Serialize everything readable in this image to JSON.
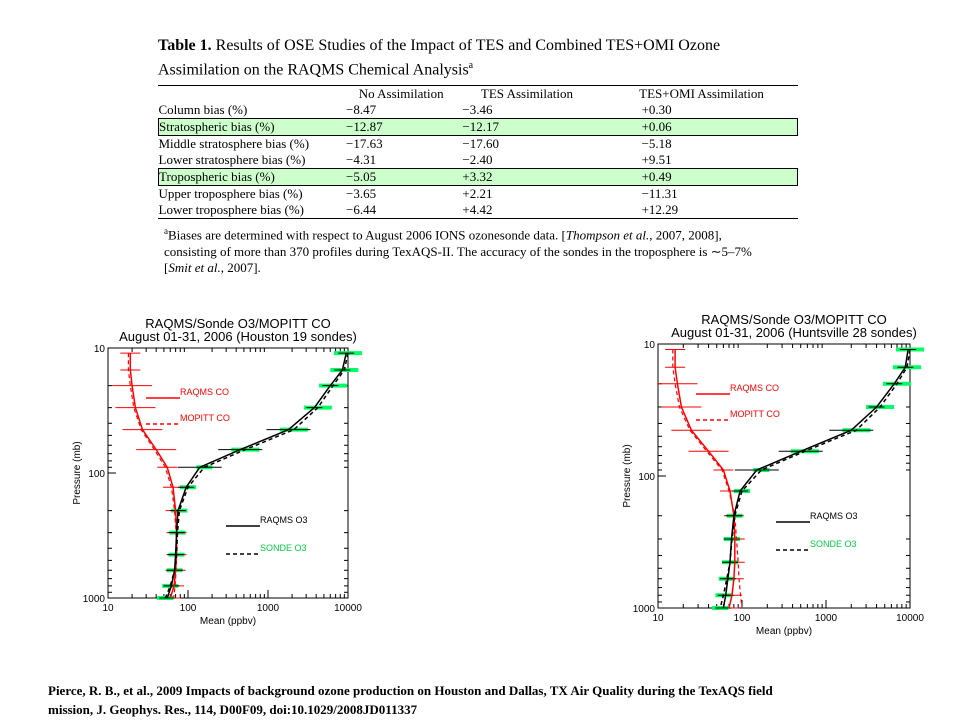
{
  "table": {
    "label": "Table 1.",
    "caption_line1": "Results of OSE Studies of the Impact of TES and Combined TES+OMI Ozone",
    "caption_line2": "Assimilation on the RAQMS Chemical Analysis",
    "caption_sup": "a",
    "headers": [
      "",
      "No Assimilation",
      "TES Assimilation",
      "TES+OMI Assimilation"
    ],
    "rows": [
      {
        "label": "Column bias (%)",
        "values": [
          "−8.47",
          "−3.46",
          "+0.30"
        ],
        "highlight": false
      },
      {
        "label": "Stratospheric bias (%)",
        "values": [
          "−12.87",
          "−12.17",
          "+0.06"
        ],
        "highlight": true
      },
      {
        "label": "Middle stratosphere bias (%)",
        "values": [
          "−17.63",
          "−17.60",
          "−5.18"
        ],
        "highlight": false
      },
      {
        "label": "Lower stratosphere bias (%)",
        "values": [
          "−4.31",
          "−2.40",
          "+9.51"
        ],
        "highlight": false
      },
      {
        "label": "Tropospheric bias (%)",
        "values": [
          "−5.05",
          "+3.32",
          "+0.49"
        ],
        "highlight": true
      },
      {
        "label": "Upper troposphere bias (%)",
        "values": [
          "−3.65",
          "+2.21",
          "−11.31"
        ],
        "highlight": false
      },
      {
        "label": "Lower troposphere bias (%)",
        "values": [
          "−6.44",
          "+4.42",
          "+12.29"
        ],
        "highlight": false
      }
    ],
    "footnote_sup": "a",
    "footnote_a": "Biases are determined with respect to August 2006 IONS ozonesonde data. [",
    "footnote_b": "Thompson et al.",
    "footnote_c": ", 2007, 2008],",
    "footnote_d": "consisting of more than 370 profiles during TexAQS-II. The accuracy of the sondes in the troposphere is ∼5–7%",
    "footnote_e": "[",
    "footnote_f": "Smit et al.",
    "footnote_g": ", 2007]."
  },
  "chart_data": [
    {
      "type": "line",
      "title": "RAQMS/Sonde O3/MOPITT CO",
      "subtitle": "August 01-31, 2006 (Houston 19 sondes)",
      "xlabel": "Mean (ppbv)",
      "ylabel": "Pressure (mb)",
      "x_scale": "log",
      "y_scale": "log",
      "xlim": [
        10,
        10000
      ],
      "ylim": [
        1000,
        10
      ],
      "xticks": [
        "10",
        "100",
        "1000",
        "10000"
      ],
      "yticks": [
        "10",
        "100",
        "1000"
      ],
      "legend": [
        "RAQMS CO",
        "MOPITT CO",
        "RAQMS O3",
        "SONDE O3"
      ],
      "colors": {
        "raqms_co": "#ff0000",
        "mopitt_co": "#ff0000",
        "raqms_o3": "#000000",
        "sonde_o3": "#00ff66"
      },
      "series": [
        {
          "name": "RAQMS CO",
          "x": [
            19,
            19,
            20,
            22,
            27,
            40,
            55,
            65,
            70,
            72,
            72,
            70,
            67,
            60
          ],
          "y": [
            11,
            15,
            20,
            30,
            45,
            65,
            90,
            130,
            200,
            300,
            450,
            600,
            800,
            1000
          ]
        },
        {
          "name": "MOPITT CO",
          "x": [
            18,
            18,
            19,
            21,
            26,
            38,
            52,
            62,
            68,
            71,
            72,
            71,
            69,
            66
          ],
          "y": [
            11,
            15,
            20,
            30,
            45,
            65,
            90,
            130,
            200,
            300,
            450,
            600,
            800,
            1000
          ]
        },
        {
          "name": "RAQMS O3",
          "x": [
            9500,
            8500,
            6000,
            3800,
            1800,
            450,
            140,
            95,
            75,
            72,
            70,
            68,
            62,
            55
          ],
          "y": [
            11,
            15,
            20,
            30,
            45,
            65,
            90,
            130,
            200,
            300,
            450,
            600,
            800,
            1000
          ]
        },
        {
          "name": "SONDE O3",
          "x": [
            10000,
            9000,
            6500,
            4200,
            2100,
            520,
            160,
            100,
            78,
            74,
            72,
            68,
            60,
            52
          ],
          "y": [
            11,
            15,
            20,
            30,
            45,
            65,
            90,
            130,
            200,
            300,
            450,
            600,
            800,
            1000
          ]
        }
      ]
    },
    {
      "type": "line",
      "title": "RAQMS/Sonde O3/MOPITT CO",
      "subtitle": "August 01-31, 2006 (Huntsville 28 sondes)",
      "xlabel": "Mean (ppbv)",
      "ylabel": "Pressure (mb)",
      "x_scale": "log",
      "y_scale": "log",
      "xlim": [
        10,
        10000
      ],
      "ylim": [
        1000,
        10
      ],
      "xticks": [
        "10",
        "100",
        "1000",
        "10000"
      ],
      "yticks": [
        "10",
        "100",
        "1000"
      ],
      "legend": [
        "RAQMS CO",
        "MOPITT CO",
        "RAQMS O3",
        "SONDE O3"
      ],
      "colors": {
        "raqms_co": "#ff0000",
        "mopitt_co": "#ff0000",
        "raqms_o3": "#000000",
        "sonde_o3": "#00ff66"
      },
      "series": [
        {
          "name": "RAQMS CO",
          "x": [
            16,
            16,
            17,
            19,
            25,
            40,
            60,
            72,
            80,
            82,
            82,
            80,
            76,
            70
          ],
          "y": [
            11,
            15,
            20,
            30,
            45,
            65,
            90,
            130,
            200,
            300,
            450,
            600,
            800,
            1000
          ]
        },
        {
          "name": "MOPITT CO",
          "x": [
            15,
            15,
            16,
            18,
            24,
            38,
            58,
            70,
            82,
            86,
            90,
            92,
            96,
            100
          ],
          "y": [
            11,
            15,
            20,
            30,
            45,
            65,
            90,
            130,
            200,
            300,
            450,
            600,
            800,
            1000
          ]
        },
        {
          "name": "RAQMS O3",
          "x": [
            9500,
            8800,
            6500,
            4000,
            2000,
            500,
            150,
            95,
            80,
            75,
            72,
            68,
            64,
            60
          ],
          "y": [
            11,
            15,
            20,
            30,
            45,
            65,
            90,
            130,
            200,
            300,
            450,
            600,
            800,
            1000
          ]
        },
        {
          "name": "SONDE O3",
          "x": [
            10000,
            9200,
            7000,
            4400,
            2300,
            560,
            170,
            100,
            82,
            76,
            72,
            66,
            60,
            55
          ],
          "y": [
            11,
            15,
            20,
            30,
            45,
            65,
            90,
            130,
            200,
            300,
            450,
            600,
            800,
            1000
          ]
        }
      ]
    }
  ],
  "citation_line1": "Pierce, R. B., et al., 2009 Impacts of background ozone production on Houston and Dallas, TX Air Quality during the TexAQS field",
  "citation_line2": "mission, J. Geophys. Res., 114, D00F09, doi:10.1029/2008JD011337"
}
